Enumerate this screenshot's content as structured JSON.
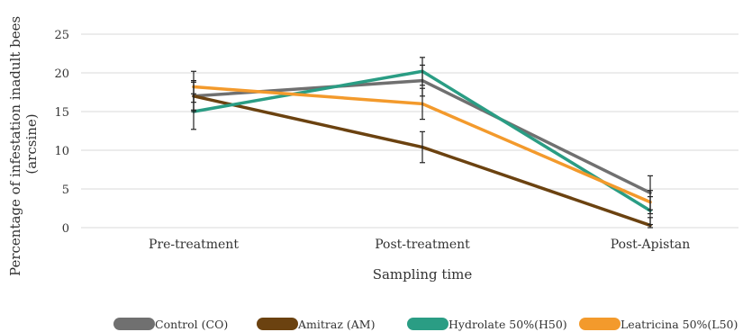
{
  "chart_data": {
    "type": "line",
    "xlabel": "Sampling time",
    "ylabel_lines": [
      "Percentage of infestation inadult bees",
      "(arcsine)"
    ],
    "categories": [
      "Pre-treatment",
      "Post-treatment",
      "Post-Apistan"
    ],
    "ylim": [
      0,
      25
    ],
    "yticks": [
      0,
      5,
      10,
      15,
      20,
      25
    ],
    "grid": true,
    "legend_position": "bottom",
    "series": [
      {
        "name": "Control (CO)",
        "color": "#707070",
        "values": [
          17.0,
          19.0,
          4.5
        ],
        "errors": [
          2.0,
          2.0,
          2.2
        ]
      },
      {
        "name": "Amitraz (AM)",
        "color": "#6b4210",
        "values": [
          17.0,
          10.4,
          0.3
        ],
        "errors": [
          1.8,
          2.0,
          1.0
        ]
      },
      {
        "name": "Hydrolate 50%(H50)",
        "color": "#2a9d84",
        "values": [
          15.0,
          20.2,
          2.2
        ],
        "errors": [
          2.3,
          1.8,
          1.8
        ]
      },
      {
        "name": "Leatricina 50%(L50)",
        "color": "#f39a2c",
        "values": [
          18.2,
          16.0,
          3.3
        ],
        "errors": [
          2.0,
          2.0,
          1.5
        ]
      }
    ]
  }
}
